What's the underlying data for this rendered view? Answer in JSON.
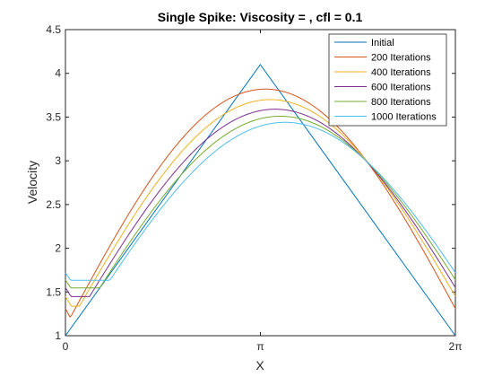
{
  "chart_data": {
    "type": "line",
    "title": "Single Spike: Viscosity = , cfl = 0.1",
    "xlabel": "X",
    "ylabel": "Velocity",
    "xlim": [
      0,
      6.283185307
    ],
    "ylim": [
      1,
      4.5
    ],
    "xticks": [
      {
        "value": 0,
        "label": "0"
      },
      {
        "value": 3.141592654,
        "label": "π"
      },
      {
        "value": 6.283185307,
        "label": "2π"
      }
    ],
    "yticks": [
      {
        "value": 1,
        "label": "1"
      },
      {
        "value": 1.5,
        "label": "1.5"
      },
      {
        "value": 2,
        "label": "2"
      },
      {
        "value": 2.5,
        "label": "2.5"
      },
      {
        "value": 3,
        "label": "3"
      },
      {
        "value": 3.5,
        "label": "3.5"
      },
      {
        "value": 4,
        "label": "4"
      },
      {
        "value": 4.5,
        "label": "4.5"
      }
    ],
    "grid": false,
    "legend_location": "top-right",
    "series": [
      {
        "name": "Initial",
        "color": "#0072BD",
        "peak_x": 3.14,
        "peak_y": 4.1,
        "edge_y": 1.0
      },
      {
        "name": "200 Iterations",
        "color": "#D95319",
        "peak_x": 3.22,
        "peak_y": 3.82,
        "edge_y": 1.31
      },
      {
        "name": "400 Iterations",
        "color": "#EDB120",
        "peak_x": 3.3,
        "peak_y": 3.7,
        "edge_y": 1.45
      },
      {
        "name": "600 Iterations",
        "color": "#7E2F8E",
        "peak_x": 3.38,
        "peak_y": 3.59,
        "edge_y": 1.55
      },
      {
        "name": "800 Iterations",
        "color": "#77AC30",
        "peak_x": 3.46,
        "peak_y": 3.51,
        "edge_y": 1.64
      },
      {
        "name": "1000 Iterations",
        "color": "#4DBEEE",
        "peak_x": 3.54,
        "peak_y": 3.44,
        "edge_y": 1.72
      }
    ]
  }
}
